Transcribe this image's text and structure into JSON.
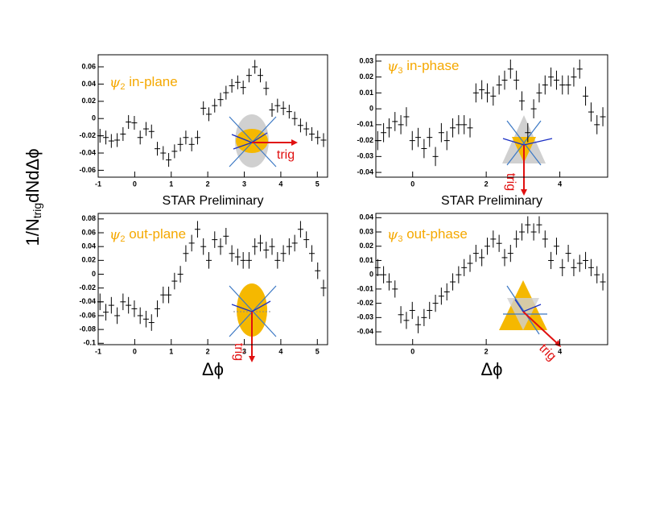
{
  "chart_data": [
    {
      "type": "errorbar",
      "title": {
        "symbol": "ψ",
        "index": "2",
        "text": " in-plane"
      },
      "annotation": "trig",
      "xlabel": "STAR Preliminary",
      "color": "#000000",
      "title_color": "#f5a800",
      "x": [
        -0.95,
        -0.79,
        -0.64,
        -0.48,
        -0.32,
        -0.17,
        -0.01,
        0.15,
        0.31,
        0.46,
        0.62,
        0.78,
        0.93,
        1.09,
        1.25,
        1.4,
        1.56,
        1.72,
        1.88,
        2.03,
        2.19,
        2.35,
        2.5,
        2.66,
        2.82,
        2.97,
        3.13,
        3.29,
        3.44,
        3.6,
        3.76,
        3.91,
        4.07,
        4.23,
        4.38,
        4.54,
        4.7,
        4.85,
        5.01,
        5.17
      ],
      "values": [
        -0.02,
        -0.022,
        -0.026,
        -0.025,
        -0.018,
        -0.004,
        -0.005,
        -0.022,
        -0.012,
        -0.015,
        -0.035,
        -0.04,
        -0.048,
        -0.038,
        -0.03,
        -0.022,
        -0.03,
        -0.022,
        0.012,
        0.005,
        0.015,
        0.022,
        0.03,
        0.038,
        0.042,
        0.036,
        0.05,
        0.06,
        0.05,
        0.035,
        0.01,
        0.015,
        0.012,
        0.008,
        0.0,
        -0.008,
        -0.012,
        -0.018,
        -0.022,
        -0.025
      ],
      "errors": [
        0.008,
        0.008,
        0.008,
        0.008,
        0.008,
        0.008,
        0.008,
        0.008,
        0.008,
        0.008,
        0.008,
        0.008,
        0.008,
        0.008,
        0.008,
        0.008,
        0.008,
        0.008,
        0.008,
        0.008,
        0.008,
        0.008,
        0.008,
        0.008,
        0.008,
        0.008,
        0.008,
        0.008,
        0.008,
        0.008,
        0.008,
        0.008,
        0.008,
        0.008,
        0.008,
        0.008,
        0.008,
        0.008,
        0.008,
        0.008
      ],
      "xlim": [
        -1,
        5.28
      ],
      "xticks": [
        -1,
        0,
        1,
        2,
        3,
        4,
        5
      ],
      "ylim": [
        -0.068,
        0.074
      ],
      "yticks": [
        -0.06,
        -0.04,
        -0.02,
        0,
        0.02,
        0.04,
        0.06
      ]
    },
    {
      "type": "errorbar",
      "title": {
        "symbol": "ψ",
        "index": "3",
        "text": " in-phase"
      },
      "annotation": "trig",
      "xlabel": "STAR Preliminary",
      "color": "#000000",
      "title_color": "#f5a800",
      "x": [
        -0.95,
        -0.79,
        -0.64,
        -0.48,
        -0.32,
        -0.17,
        -0.01,
        0.15,
        0.31,
        0.46,
        0.62,
        0.78,
        0.93,
        1.09,
        1.25,
        1.4,
        1.56,
        1.72,
        1.88,
        2.03,
        2.19,
        2.35,
        2.5,
        2.66,
        2.82,
        2.97,
        3.13,
        3.29,
        3.44,
        3.6,
        3.76,
        3.91,
        4.07,
        4.23,
        4.38,
        4.54,
        4.7,
        4.85,
        5.01,
        5.17
      ],
      "values": [
        -0.02,
        -0.015,
        -0.012,
        -0.008,
        -0.01,
        -0.005,
        -0.02,
        -0.018,
        -0.025,
        -0.018,
        -0.03,
        -0.015,
        -0.02,
        -0.012,
        -0.01,
        -0.01,
        -0.012,
        0.01,
        0.012,
        0.01,
        0.008,
        0.015,
        0.018,
        0.025,
        0.018,
        0.005,
        -0.015,
        0.0,
        0.01,
        0.015,
        0.02,
        0.018,
        0.015,
        0.015,
        0.02,
        0.025,
        0.008,
        -0.002,
        -0.01,
        -0.005
      ],
      "errors": [
        0.006,
        0.006,
        0.006,
        0.006,
        0.006,
        0.006,
        0.006,
        0.006,
        0.006,
        0.006,
        0.006,
        0.006,
        0.006,
        0.006,
        0.006,
        0.006,
        0.006,
        0.006,
        0.006,
        0.006,
        0.006,
        0.006,
        0.006,
        0.006,
        0.006,
        0.006,
        0.006,
        0.006,
        0.006,
        0.006,
        0.006,
        0.006,
        0.006,
        0.006,
        0.006,
        0.006,
        0.006,
        0.006,
        0.006,
        0.006
      ],
      "xlim": [
        -1,
        5.3
      ],
      "xticks": [
        0,
        2,
        4
      ],
      "ylim": [
        -0.043,
        0.034
      ],
      "yticks": [
        -0.04,
        -0.03,
        -0.02,
        -0.01,
        0,
        0.01,
        0.02,
        0.03
      ]
    },
    {
      "type": "errorbar",
      "title": {
        "symbol": "ψ",
        "index": "2",
        "text": " out-plane"
      },
      "annotation": "trig",
      "xlabel": "Δϕ",
      "color": "#000000",
      "title_color": "#f5a800",
      "x": [
        -0.95,
        -0.79,
        -0.64,
        -0.48,
        -0.32,
        -0.17,
        -0.01,
        0.15,
        0.31,
        0.46,
        0.62,
        0.78,
        0.93,
        1.09,
        1.25,
        1.4,
        1.56,
        1.72,
        1.88,
        2.03,
        2.19,
        2.35,
        2.5,
        2.66,
        2.82,
        2.97,
        3.13,
        3.29,
        3.44,
        3.6,
        3.76,
        3.91,
        4.07,
        4.23,
        4.38,
        4.54,
        4.7,
        4.85,
        5.01,
        5.17
      ],
      "values": [
        -0.04,
        -0.055,
        -0.045,
        -0.06,
        -0.04,
        -0.045,
        -0.05,
        -0.06,
        -0.065,
        -0.07,
        -0.05,
        -0.03,
        -0.03,
        -0.01,
        0.0,
        0.03,
        0.045,
        0.065,
        0.04,
        0.02,
        0.05,
        0.04,
        0.055,
        0.03,
        0.025,
        0.02,
        0.02,
        0.04,
        0.045,
        0.035,
        0.04,
        0.02,
        0.03,
        0.04,
        0.045,
        0.065,
        0.05,
        0.03,
        0.005,
        -0.02
      ],
      "errors": [
        0.012,
        0.012,
        0.012,
        0.012,
        0.012,
        0.012,
        0.012,
        0.012,
        0.012,
        0.012,
        0.012,
        0.012,
        0.012,
        0.012,
        0.012,
        0.012,
        0.012,
        0.012,
        0.012,
        0.012,
        0.012,
        0.012,
        0.012,
        0.012,
        0.012,
        0.012,
        0.012,
        0.012,
        0.012,
        0.012,
        0.012,
        0.012,
        0.012,
        0.012,
        0.012,
        0.012,
        0.012,
        0.012,
        0.012,
        0.012
      ],
      "xlim": [
        -1,
        5.28
      ],
      "xticks": [
        -1,
        0,
        1,
        2,
        3,
        4,
        5
      ],
      "ylim": [
        -0.102,
        0.088
      ],
      "yticks": [
        -0.1,
        -0.08,
        -0.06,
        -0.04,
        -0.02,
        0,
        0.02,
        0.04,
        0.06,
        0.08
      ]
    },
    {
      "type": "errorbar",
      "title": {
        "symbol": "ψ",
        "index": "3",
        "text": " out-phase"
      },
      "annotation": "trig",
      "xlabel": "Δϕ",
      "color": "#000000",
      "title_color": "#f5a800",
      "x": [
        -0.95,
        -0.79,
        -0.64,
        -0.48,
        -0.32,
        -0.17,
        -0.01,
        0.15,
        0.31,
        0.46,
        0.62,
        0.78,
        0.93,
        1.09,
        1.25,
        1.4,
        1.56,
        1.72,
        1.88,
        2.03,
        2.19,
        2.35,
        2.5,
        2.66,
        2.82,
        2.97,
        3.13,
        3.29,
        3.44,
        3.6,
        3.76,
        3.91,
        4.07,
        4.23,
        4.38,
        4.54,
        4.7,
        4.85,
        5.01,
        5.17
      ],
      "values": [
        0.005,
        0.0,
        -0.005,
        -0.01,
        -0.028,
        -0.032,
        -0.025,
        -0.035,
        -0.03,
        -0.025,
        -0.02,
        -0.015,
        -0.012,
        -0.005,
        0.0,
        0.005,
        0.008,
        0.015,
        0.012,
        0.02,
        0.025,
        0.022,
        0.012,
        0.015,
        0.025,
        0.03,
        0.035,
        0.03,
        0.035,
        0.025,
        0.01,
        0.02,
        0.005,
        0.015,
        0.005,
        0.008,
        0.01,
        0.005,
        0.0,
        -0.005
      ],
      "errors": [
        0.006,
        0.006,
        0.006,
        0.006,
        0.006,
        0.006,
        0.006,
        0.006,
        0.006,
        0.006,
        0.006,
        0.006,
        0.006,
        0.006,
        0.006,
        0.006,
        0.006,
        0.006,
        0.006,
        0.006,
        0.006,
        0.006,
        0.006,
        0.006,
        0.006,
        0.006,
        0.006,
        0.006,
        0.006,
        0.006,
        0.006,
        0.006,
        0.006,
        0.006,
        0.006,
        0.006,
        0.006,
        0.006,
        0.006,
        0.006
      ],
      "xlim": [
        -1,
        5.3
      ],
      "xticks": [
        0,
        2,
        4
      ],
      "ylim": [
        -0.049,
        0.043
      ],
      "yticks": [
        -0.04,
        -0.03,
        -0.02,
        -0.01,
        0,
        0.01,
        0.02,
        0.03,
        0.04
      ]
    }
  ],
  "ylabel": {
    "main": "1/N",
    "sub": "trig",
    "rest": "dNdΔϕ"
  }
}
